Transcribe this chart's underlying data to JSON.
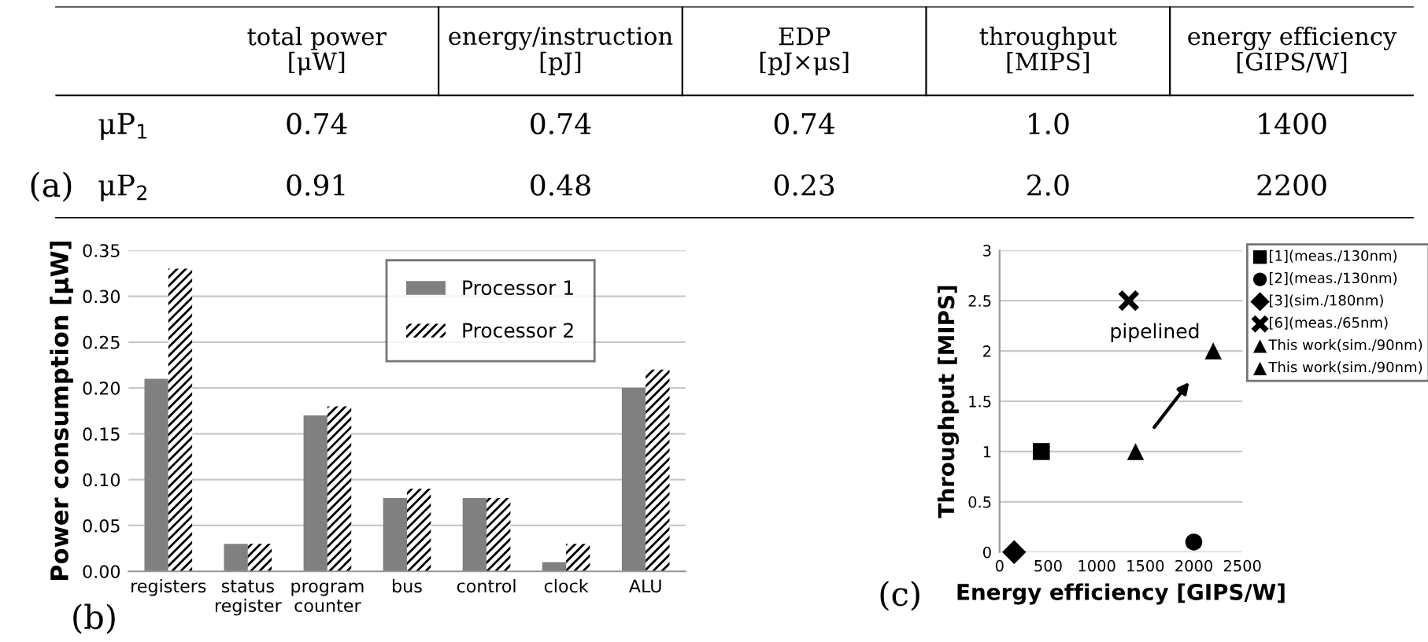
{
  "chart_data": [
    {
      "type": "other",
      "title": "(a)",
      "categories": [
        "total power\n[μW]",
        "energy/instruction\n[pJ]",
        "EDP\n[pJ×μs]",
        "throughput\n[MIPS]",
        "energy efficiency\n[GIPS/W]"
      ],
      "y_categories": [
        "μP$_{1}$",
        "μP$_{2}$"
      ],
      "cell_labels": [
        [
          "0.74",
          "0.74",
          "0.74",
          "1.0",
          "1400"
        ],
        [
          "0.91",
          "0.48",
          "0.23",
          "2.0",
          "2200"
        ]
      ]
    },
    {
      "type": "bar",
      "title": "(b)",
      "ylabel": "Power consumption [μW]",
      "categories": [
        "registers",
        "status\nregister",
        "program\ncounter",
        "bus",
        "control",
        "clock",
        "ALU"
      ],
      "series": [
        {
          "name": "Processor 1",
          "color": "#808080",
          "values": [
            0.21,
            0.03,
            0.17,
            0.08,
            0.08,
            0.01,
            0.2
          ]
        },
        {
          "name": "Processor 2",
          "color": "#000000",
          "values": [
            0.33,
            0.03,
            0.18,
            0.09,
            0.08,
            0.03,
            0.22
          ]
        }
      ],
      "ylim": [
        0,
        0.35
      ],
      "yticks": [
        {
          "value": 0,
          "label": "0.00"
        },
        {
          "value": 0.05,
          "label": "0.05"
        },
        {
          "value": 0.1,
          "label": "0.10"
        },
        {
          "value": 0.15,
          "label": "0.15"
        },
        {
          "value": 0.2,
          "label": "0.20"
        },
        {
          "value": 0.25,
          "label": "0.25"
        },
        {
          "value": 0.3,
          "label": "0.30"
        },
        {
          "value": 0.35,
          "label": "0.35"
        }
      ],
      "grid": "y",
      "legend": "top"
    },
    {
      "type": "scatter",
      "title": "(c)",
      "xlabel": "Energy efficiency [GIPS/W]",
      "ylabel": "Throughput [MIPS]",
      "series": [
        {
          "name": "[1](meas./130nm)",
          "color": "#000000",
          "marker": "square",
          "x": [
            430
          ],
          "values": [
            1
          ]
        },
        {
          "name": "[2](meas./130nm)",
          "color": "#000000",
          "marker": "circle",
          "x": [
            2000
          ],
          "values": [
            0.1
          ]
        },
        {
          "name": "[3](sim./180nm)",
          "color": "#000000",
          "marker": "diamond",
          "x": [
            150
          ],
          "values": [
            0
          ]
        },
        {
          "name": "[6](meas./65nm)",
          "color": "#000000",
          "marker": "cross",
          "x": [
            1330
          ],
          "values": [
            2.5
          ]
        },
        {
          "name": "This work(sim./90nm)",
          "color": "#000000",
          "marker": "triangle",
          "x": [
            1400
          ],
          "values": [
            1
          ]
        },
        {
          "name": "This work(sim./90nm)",
          "color": "#000000",
          "marker": "triangle",
          "x": [
            2200
          ],
          "values": [
            2
          ]
        }
      ],
      "annotations": [
        {
          "text": "pipelined",
          "x": 2200,
          "y": 2
        }
      ],
      "xlim": [
        0,
        2500
      ],
      "xticks": [
        0,
        500,
        1000,
        1500,
        2000,
        2500
      ],
      "ylim": [
        0,
        3
      ],
      "yticks": [
        0,
        0.5,
        1,
        1.5,
        2,
        2.5,
        3
      ],
      "grid": "y",
      "legend": "right"
    }
  ]
}
